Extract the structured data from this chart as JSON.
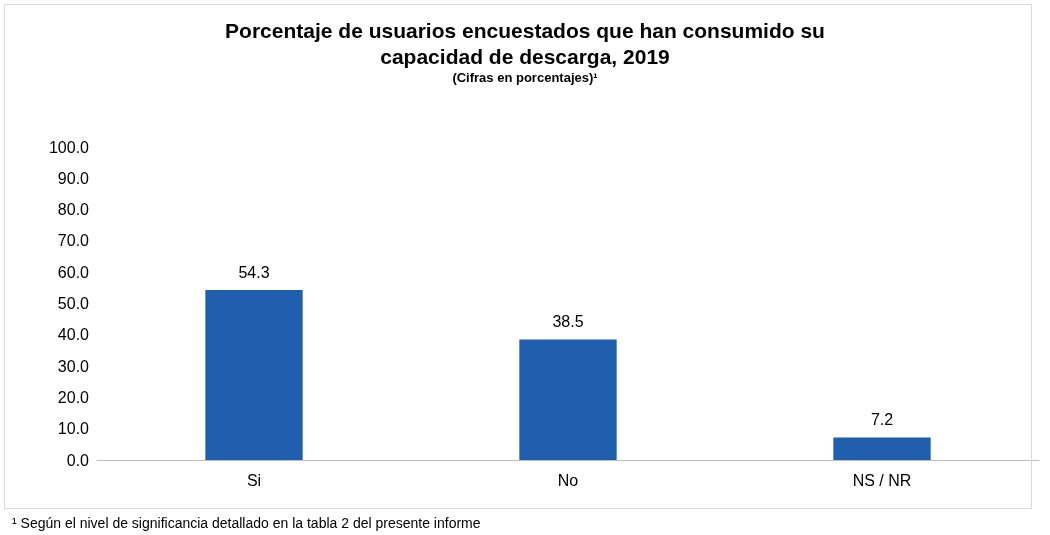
{
  "chart_data": {
    "type": "bar",
    "title": "Porcentaje de usuarios encuestados que han consumido su\ncapacidad de descarga, 2019",
    "subtitle": "(Cifras en porcentajes)¹",
    "categories": [
      "Si",
      "No",
      "NS / NR"
    ],
    "values": [
      54.3,
      38.5,
      7.2
    ],
    "color": "#1f5fad",
    "ylim": [
      0,
      100
    ],
    "yticks": [
      {
        "value": 0,
        "label": "0.0"
      },
      {
        "value": 10,
        "label": "10.0"
      },
      {
        "value": 20,
        "label": "20.0"
      },
      {
        "value": 30,
        "label": "30.0"
      },
      {
        "value": 40,
        "label": "40.0"
      },
      {
        "value": 50,
        "label": "50.0"
      },
      {
        "value": 60,
        "label": "60.0"
      },
      {
        "value": 70,
        "label": "70.0"
      },
      {
        "value": 80,
        "label": "80.0"
      },
      {
        "value": 90,
        "label": "90.0"
      },
      {
        "value": 100,
        "label": "100.0"
      }
    ],
    "grid": false,
    "data_labels": true,
    "annotations": [
      "¹ Según el nivel de significancia detallado en la tabla 2 del presente informe"
    ]
  }
}
